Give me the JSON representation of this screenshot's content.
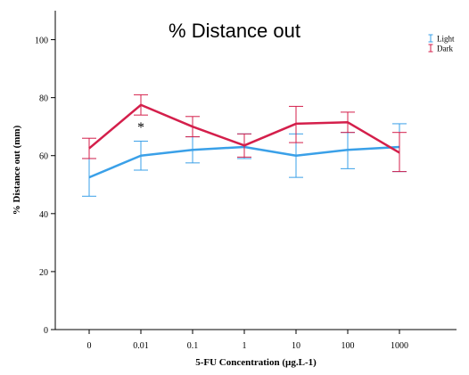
{
  "chart_data": {
    "type": "line",
    "title": "% Distance out",
    "xlabel": "5-FU Concentration (µg.L-1)",
    "ylabel": "% Distance out (mm)",
    "categories": [
      "0",
      "0.01",
      "0.1",
      "1",
      "10",
      "100",
      "1000"
    ],
    "ylim": [
      0,
      110
    ],
    "yticks": [
      0,
      20,
      40,
      60,
      80,
      100
    ],
    "grid": false,
    "legend": "top-right",
    "series": [
      {
        "name": "Light",
        "color": "#3aa0e8",
        "values": [
          52.5,
          60,
          62,
          63,
          60,
          62,
          63
        ],
        "err_low": [
          46,
          55,
          57.5,
          59,
          52.5,
          55.5,
          54.5
        ],
        "err_high": [
          59,
          65,
          66.5,
          67.5,
          67.5,
          68,
          71
        ]
      },
      {
        "name": "Dark",
        "color": "#d41f4b",
        "values": [
          62.5,
          77.5,
          70,
          63.5,
          71,
          71.5,
          61
        ],
        "err_low": [
          59,
          74,
          66.5,
          59.5,
          64.5,
          68,
          54.5
        ],
        "err_high": [
          66,
          81,
          73.5,
          67.5,
          77,
          75,
          68
        ]
      }
    ],
    "annotations": [
      {
        "text": "*",
        "category": "0.01",
        "y": 70
      }
    ]
  }
}
